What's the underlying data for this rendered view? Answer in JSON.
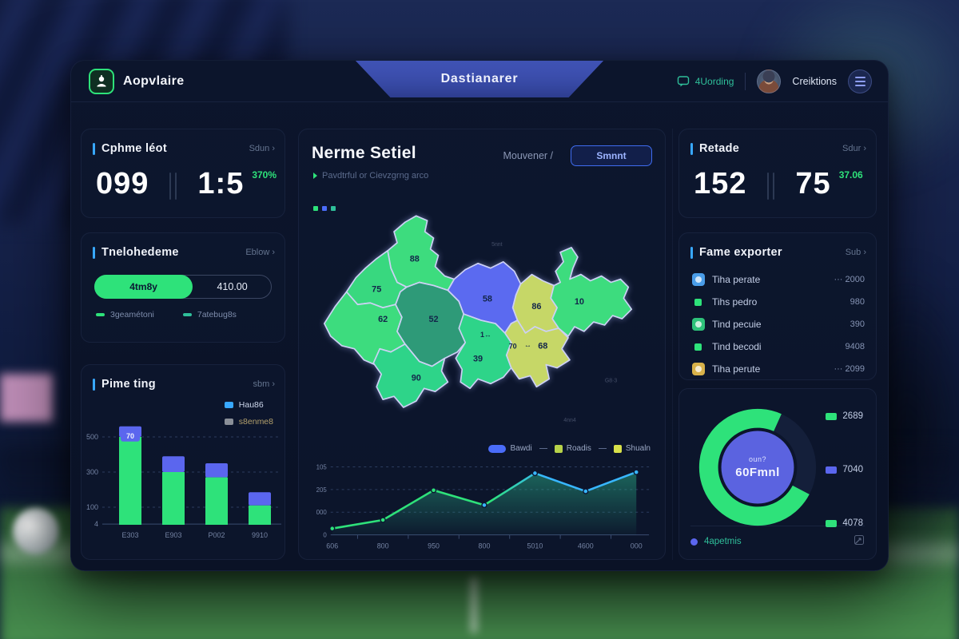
{
  "header": {
    "app_name": "Aopvlaire",
    "tab_title": "Dastianarer",
    "chat_label": "4Uording",
    "user_name": "Creiktions"
  },
  "left": {
    "stat": {
      "title": "Cphme léot",
      "link": "Sdun ›",
      "v1": "099",
      "v2": "1:5",
      "delta": "370%"
    },
    "progress": {
      "title": "Tnelohedeme",
      "link": "Eblow ›",
      "seg_left": "4tm8y",
      "seg_right": "410.00",
      "legend1": "3geamétoni",
      "legend2": "7atebug8s",
      "legend1_color": "#2ee27a",
      "legend2_color": "#2fbf9a"
    },
    "timing": {
      "title": "Pime ting",
      "link": "sbm ›"
    }
  },
  "center": {
    "title": "Nerme Setiel",
    "subtitle": "Pavdtrful or Cievzgrng arco",
    "menu": "Mouvener /",
    "button": "Smnnt"
  },
  "right": {
    "stat": {
      "title": "Retade",
      "link": "Sdur ›",
      "v1": "152",
      "v2": "75",
      "delta": "37.06"
    },
    "exporter": {
      "title": "Fame exporter",
      "link": "Sub ›",
      "rows": [
        {
          "label": "Tiha perate",
          "value": "··· 2000",
          "color": "#4a9de8",
          "big": true
        },
        {
          "label": "Tihs pedro",
          "value": "980",
          "color": "#2ee27a",
          "big": false
        },
        {
          "label": "Tind pecuie",
          "value": "390",
          "color": "#2ec27a",
          "big": true
        },
        {
          "label": "Tind becodi",
          "value": "9408",
          "color": "#2ee27a",
          "big": false
        },
        {
          "label": "Tiha perute",
          "value": "··· 2099",
          "color": "#d8b14a",
          "big": true
        }
      ]
    },
    "donut_panel": {
      "footer": "4apetmis"
    }
  },
  "chart_data": [
    {
      "id": "prime-timing-bars",
      "type": "bar",
      "stacked": true,
      "categories": [
        "E303",
        "E903",
        "P002",
        "9910"
      ],
      "series": [
        {
          "name": "Hau86",
          "color": "#5b66ee",
          "values": [
            60,
            90,
            80,
            75
          ]
        },
        {
          "name": "s8enme8",
          "color": "#2ee27a",
          "values": [
            500,
            300,
            270,
            110
          ]
        }
      ],
      "y_ticks": [
        {
          "label": "500",
          "value": 500
        },
        {
          "label": "300",
          "value": 300
        },
        {
          "label": "100",
          "value": 100
        },
        {
          "label": "4",
          "value": 4
        }
      ],
      "ylim": [
        0,
        600
      ],
      "bar_badge": {
        "index": 0,
        "label": "70"
      },
      "legend": [
        {
          "label": "Hau86",
          "color": "#38a8ff"
        },
        {
          "label": "s8enme8",
          "color": "#8a8f98"
        }
      ]
    },
    {
      "id": "region-map",
      "type": "choropleth",
      "regions": [
        {
          "name": "north",
          "value": "88",
          "color": "#3ddc7e"
        },
        {
          "name": "west-north",
          "value": "75",
          "color": "#38d87f"
        },
        {
          "name": "west-south",
          "value": "62",
          "color": "#3ddc7e"
        },
        {
          "name": "center",
          "value": "52",
          "color": "#2e9a78"
        },
        {
          "name": "center-north",
          "value": "58",
          "color": "#5b6af0"
        },
        {
          "name": "east-north",
          "value": "86",
          "color": "#c6d767"
        },
        {
          "name": "east-south",
          "value": "68",
          "color": "#c6d767"
        },
        {
          "name": "far-east",
          "value": "10",
          "color": "#3ddc7e"
        },
        {
          "name": "center-south",
          "value": "39",
          "color": "#2ed489"
        },
        {
          "name": "south",
          "value": "90",
          "color": "#2ed489"
        }
      ],
      "extra_labels": [
        {
          "text": "70"
        },
        {
          "text": "↔"
        },
        {
          "text": "1↔"
        }
      ],
      "faint_labels": [
        {
          "text": "5nnt"
        },
        {
          "text": "G8·3"
        },
        {
          "text": "4nn4"
        }
      ]
    },
    {
      "id": "trend-line",
      "type": "line",
      "x": [
        "606",
        "800",
        "950",
        "800",
        "5010",
        "4600",
        "000"
      ],
      "values": [
        30,
        70,
        210,
        140,
        290,
        205,
        295
      ],
      "ylim": [
        0,
        320
      ],
      "y_ticks": [
        "105",
        "205",
        "000",
        "0"
      ],
      "legend": [
        {
          "label": "Bawdi",
          "color": "#4a6cf8"
        },
        {
          "label": "Roadis",
          "color": "#b7d24a"
        },
        {
          "label": "Shualn",
          "color": "#d8e04a"
        }
      ],
      "stroke_colors": [
        "#2ee27a",
        "#38b6ff"
      ],
      "area": true
    },
    {
      "id": "share-donut",
      "type": "donut",
      "percent": 74,
      "ring_color": "#2ee27a",
      "track_color": "#141f3a",
      "inner_color": "#5b63e0",
      "center_small": "oun?",
      "center_big": "60Fmnl",
      "legend": [
        {
          "label": "2689",
          "color": "#2ee27a"
        },
        {
          "label": "7040",
          "color": "#5b66ee"
        },
        {
          "label": "4078",
          "color": "#2ee27a"
        }
      ]
    }
  ]
}
